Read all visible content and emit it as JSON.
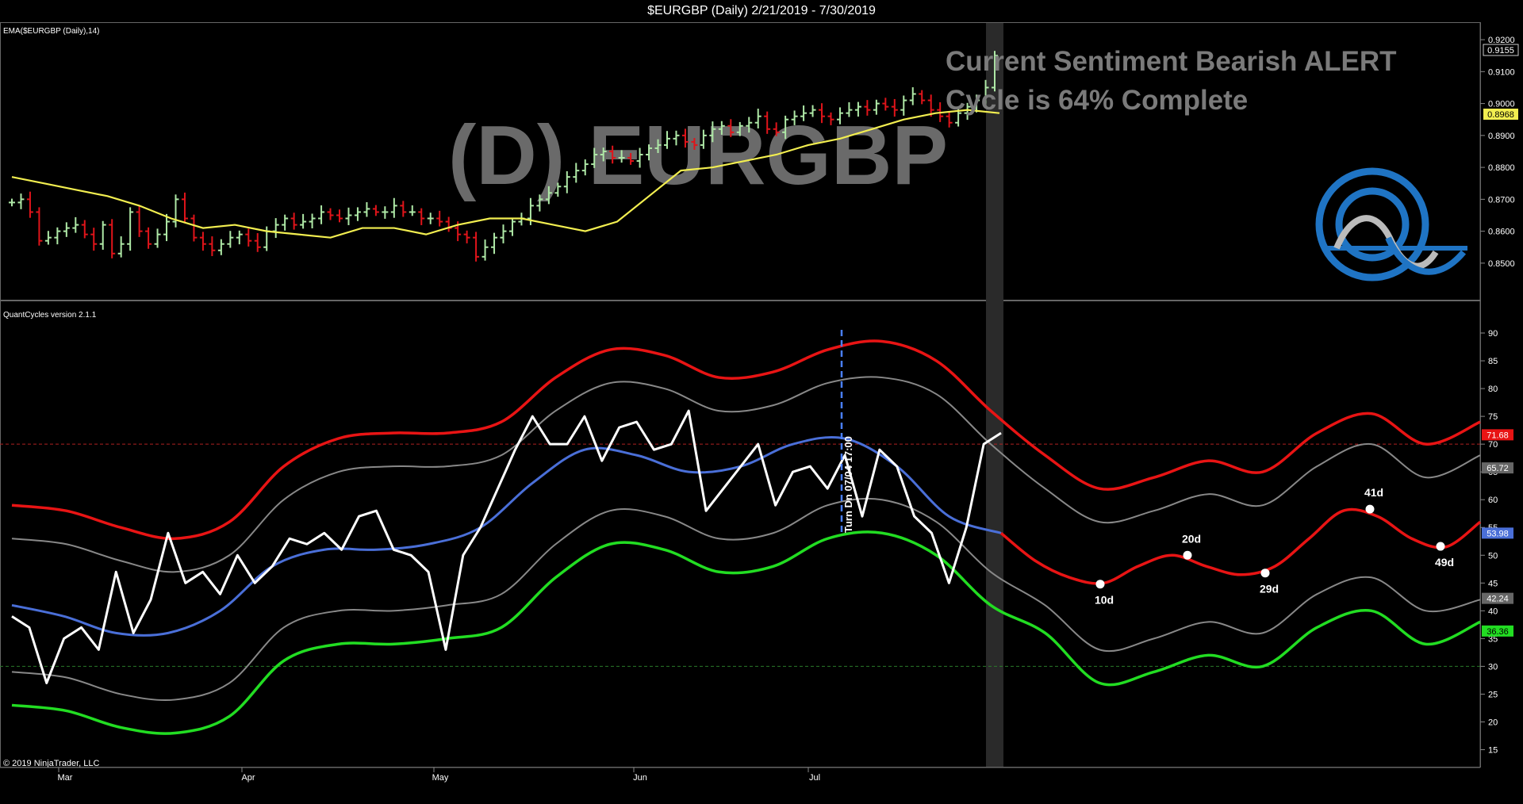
{
  "title": "$EURGBP (Daily)  2/21/2019 - 7/30/2019",
  "price_panel": {
    "indicator_label": "EMA($EURGBP (Daily),14)",
    "watermark": "(D) EURGBP",
    "sentiment_line1": "Current Sentiment Bearish ALERT",
    "sentiment_line2": "Cycle is 64% Complete",
    "last_price_label": "0.9155",
    "ema_label": "0.8968"
  },
  "cycle_panel": {
    "label": "QuantCycles version 2.1.1",
    "turn_annotation": "Turn Dn  07/04  17:00",
    "cycle_markers": [
      "10d",
      "20d",
      "29d",
      "41d",
      "49d"
    ],
    "right_labels": [
      "71.68",
      "65.72",
      "53.98",
      "42.24",
      "36.36"
    ]
  },
  "copyright": "© 2019 NinjaTrader, LLC",
  "months": [
    "Mar",
    "Apr",
    "May",
    "Jun",
    "Jul"
  ],
  "colors": {
    "bar_up": "#aee8a6",
    "bar_down": "#e0141a",
    "ema": "#f2ee50",
    "upper_band": "#e81414",
    "inner_band": "#888888",
    "mid_line": "#4a6fd8",
    "lower_band": "#22dd22",
    "oscillator": "#ffffff",
    "logo": "#1f74c4"
  },
  "chart_data": [
    {
      "type": "ohlc",
      "title": "$EURGBP (Daily)  2/21/2019 - 7/30/2019",
      "y_ticks": [
        "0.9200",
        "0.9100",
        "0.9000",
        "0.8900",
        "0.8800",
        "0.8700",
        "0.8600",
        "0.8500"
      ],
      "ylim": [
        0.845,
        0.9225
      ],
      "series": [
        {
          "name": "$EURGBP",
          "close": [
            0.869,
            0.87,
            0.866,
            0.857,
            0.858,
            0.86,
            0.861,
            0.862,
            0.859,
            0.856,
            0.862,
            0.853,
            0.856,
            0.866,
            0.86,
            0.856,
            0.859,
            0.863,
            0.87,
            0.864,
            0.858,
            0.856,
            0.854,
            0.856,
            0.858,
            0.859,
            0.857,
            0.855,
            0.86,
            0.862,
            0.864,
            0.862,
            0.863,
            0.864,
            0.866,
            0.865,
            0.864,
            0.865,
            0.866,
            0.867,
            0.866,
            0.866,
            0.868,
            0.866,
            0.866,
            0.864,
            0.864,
            0.863,
            0.861,
            0.859,
            0.858,
            0.852,
            0.855,
            0.858,
            0.86,
            0.863,
            0.864,
            0.868,
            0.87,
            0.872,
            0.874,
            0.877,
            0.879,
            0.881,
            0.884,
            0.885,
            0.883,
            0.883,
            0.882,
            0.884,
            0.886,
            0.887,
            0.889,
            0.89,
            0.888,
            0.887,
            0.89,
            0.892,
            0.893,
            0.891,
            0.893,
            0.894,
            0.896,
            0.892,
            0.891,
            0.895,
            0.896,
            0.897,
            0.898,
            0.896,
            0.895,
            0.897,
            0.898,
            0.899,
            0.898,
            0.9,
            0.899,
            0.898,
            0.901,
            0.903,
            0.901,
            0.898,
            0.896,
            0.894,
            0.897,
            0.899,
            0.901,
            0.905,
            0.915
          ]
        },
        {
          "name": "EMA($EURGBP (Daily),14)",
          "values": [
            0.877,
            0.875,
            0.873,
            0.871,
            0.868,
            0.864,
            0.861,
            0.862,
            0.86,
            0.859,
            0.858,
            0.861,
            0.861,
            0.859,
            0.862,
            0.864,
            0.864,
            0.862,
            0.86,
            0.863,
            0.871,
            0.879,
            0.88,
            0.882,
            0.884,
            0.887,
            0.889,
            0.892,
            0.895,
            0.897,
            0.898,
            0.897
          ]
        }
      ]
    },
    {
      "type": "line",
      "title": "QuantCycles version 2.1.1",
      "y_ticks": [
        90,
        85,
        80,
        75,
        70,
        65,
        60,
        55,
        50,
        45,
        40,
        35,
        30,
        25,
        20,
        15
      ],
      "ylim": [
        13.5,
        92
      ],
      "reference_lines": [
        70,
        30
      ],
      "series": [
        {
          "name": "upper_outer",
          "values": [
            59,
            58,
            55,
            53,
            56,
            66,
            71,
            72,
            72,
            74,
            82,
            87,
            86,
            82,
            83,
            87,
            88.5,
            85,
            76,
            68,
            62,
            64,
            67,
            65,
            72,
            75.5,
            70,
            74
          ]
        },
        {
          "name": "upper_inner",
          "values": [
            53,
            52,
            49,
            47,
            50,
            60,
            65,
            66,
            66,
            68,
            76,
            81,
            80,
            76,
            77,
            81,
            82,
            79,
            70,
            62,
            56,
            58,
            61,
            59,
            66,
            70,
            64,
            68
          ]
        },
        {
          "name": "mid",
          "values": [
            41,
            39,
            36,
            36,
            40,
            48,
            51,
            51,
            52,
            55,
            63,
            69,
            68,
            65,
            66,
            70,
            71,
            66,
            57,
            53.98
          ]
        },
        {
          "name": "projection",
          "values": [
            53.98,
            49,
            46,
            45,
            48,
            50,
            48,
            46.5,
            48,
            53,
            58,
            57,
            53,
            51.5,
            56
          ]
        },
        {
          "name": "lower_inner",
          "values": [
            29,
            28,
            25,
            24,
            27,
            37,
            40,
            40,
            41,
            43,
            52,
            58,
            57,
            53,
            54,
            59,
            60,
            56,
            47,
            41,
            33,
            35,
            38,
            36,
            43,
            46,
            40,
            42
          ]
        },
        {
          "name": "lower_outer",
          "values": [
            23,
            22,
            19,
            18,
            21,
            31,
            34,
            34,
            35,
            37,
            46,
            52,
            51,
            47,
            48,
            53,
            54,
            50,
            41,
            36,
            27,
            29,
            32,
            30,
            37,
            40,
            34,
            38
          ]
        },
        {
          "name": "oscillator",
          "values": [
            39,
            37,
            27,
            35,
            37,
            33,
            47,
            36,
            42,
            54,
            45,
            47,
            43,
            50,
            45,
            48,
            53,
            52,
            54,
            51,
            57,
            58,
            51,
            50,
            47,
            33,
            50,
            55,
            62,
            69,
            75,
            70,
            70,
            75,
            67,
            73,
            74,
            69,
            70,
            76,
            58,
            62,
            66,
            70,
            59,
            65,
            66,
            62,
            68,
            57,
            69,
            66,
            57,
            54,
            45,
            55,
            70,
            72
          ]
        }
      ],
      "cycle_markers": [
        {
          "label": "10d",
          "value": 44.8
        },
        {
          "label": "20d",
          "value": 50
        },
        {
          "label": "29d",
          "value": 46.8
        },
        {
          "label": "41d",
          "value": 58.3
        },
        {
          "label": "49d",
          "value": 51.6
        }
      ]
    }
  ]
}
